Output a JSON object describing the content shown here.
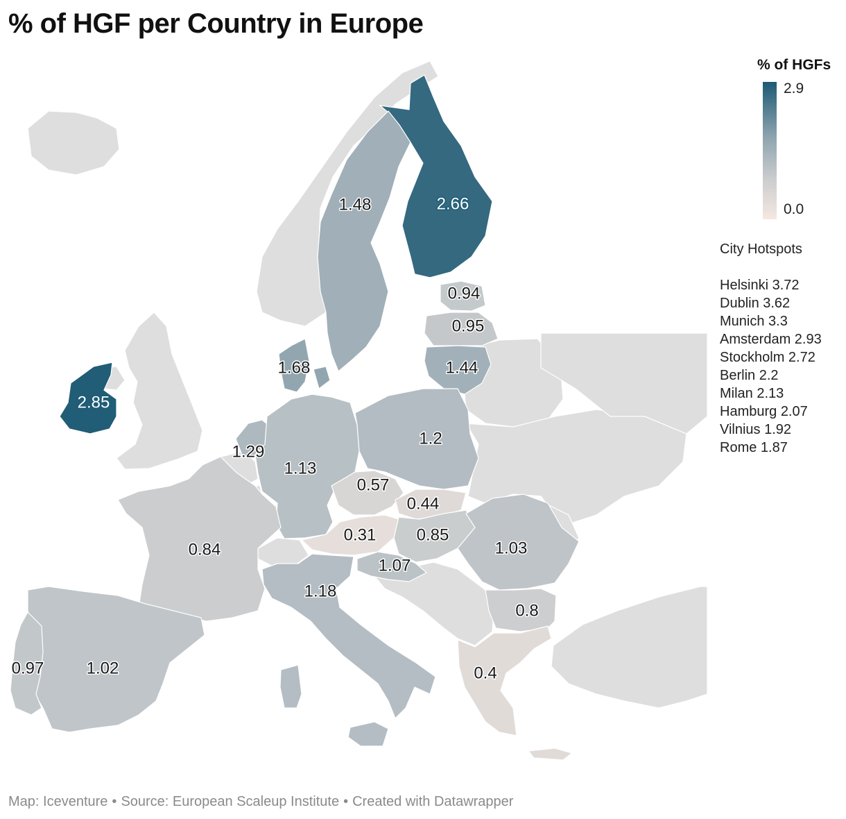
{
  "title": "% of HGF per Country in Europe",
  "colors": {
    "high": "#1c5a74",
    "mid": "#8ea3ae",
    "low": "#f5e8e1",
    "nodata": "#dedede"
  },
  "legend": {
    "title": "% of HGFs",
    "max_label": "2.9",
    "min_label": "0.0",
    "range": [
      0.0,
      2.9
    ]
  },
  "hotspots": {
    "heading": "City Hotspots",
    "items": [
      "Helsinki 3.72",
      "Dublin 3.62",
      "Munich 3.3",
      "Amsterdam 2.93",
      "Stockholm 2.72",
      "Berlin 2.2",
      "Milan 2.13",
      "Hamburg 2.07",
      "Vilnius 1.92",
      "Rome 1.87"
    ]
  },
  "countries": [
    {
      "id": "finland",
      "label": "2.66",
      "value": 2.66
    },
    {
      "id": "ireland",
      "label": "2.85",
      "value": 2.85
    },
    {
      "id": "sweden",
      "label": "1.48",
      "value": 1.48
    },
    {
      "id": "denmark",
      "label": "1.68",
      "value": 1.68
    },
    {
      "id": "estonia",
      "label": "0.94",
      "value": 0.94
    },
    {
      "id": "latvia",
      "label": "0.95",
      "value": 0.95
    },
    {
      "id": "lithuania",
      "label": "1.44",
      "value": 1.44
    },
    {
      "id": "netherlands",
      "label": "1.29",
      "value": 1.29
    },
    {
      "id": "germany",
      "label": "1.13",
      "value": 1.13
    },
    {
      "id": "poland",
      "label": "1.2",
      "value": 1.2
    },
    {
      "id": "czechia",
      "label": "0.57",
      "value": 0.57
    },
    {
      "id": "slovakia",
      "label": "0.44",
      "value": 0.44
    },
    {
      "id": "austria",
      "label": "0.31",
      "value": 0.31
    },
    {
      "id": "hungary",
      "label": "0.85",
      "value": 0.85
    },
    {
      "id": "romania",
      "label": "1.03",
      "value": 1.03
    },
    {
      "id": "slovenia",
      "label": "1.07",
      "value": 1.07
    },
    {
      "id": "france",
      "label": "0.84",
      "value": 0.84
    },
    {
      "id": "italy",
      "label": "1.18",
      "value": 1.18
    },
    {
      "id": "bulgaria",
      "label": "0.8",
      "value": 0.8
    },
    {
      "id": "spain",
      "label": "1.02",
      "value": 1.02
    },
    {
      "id": "portugal",
      "label": "0.97",
      "value": 0.97
    },
    {
      "id": "greece",
      "label": "0.4",
      "value": 0.4
    }
  ],
  "footer": {
    "map_credit": "Map: Iceventure",
    "source": "Source: European Scaleup Institute",
    "created": "Created with Datawrapper",
    "separator": "•"
  }
}
